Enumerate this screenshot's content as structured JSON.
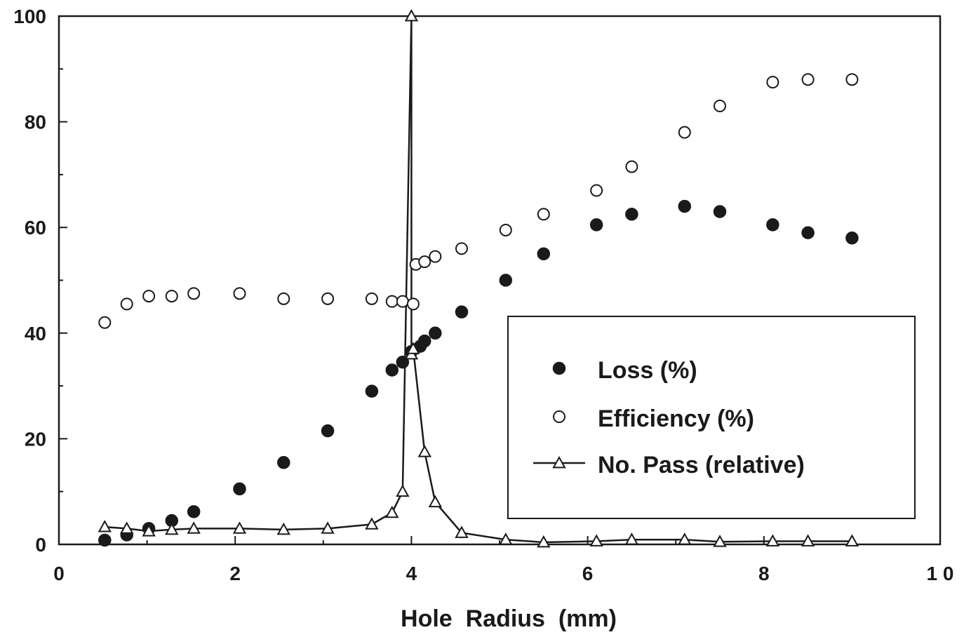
{
  "chart_data": {
    "type": "scatter",
    "xlabel": "Hole  Radius  (mm)",
    "ylabel": "",
    "xlim": [
      0,
      10
    ],
    "ylim": [
      0,
      100
    ],
    "x_ticks": [
      0,
      2,
      4,
      6,
      8,
      10
    ],
    "x_tick_labels": [
      "0",
      "2",
      "4",
      "6",
      "8",
      "1 0"
    ],
    "y_ticks": [
      0,
      20,
      40,
      60,
      80,
      100
    ],
    "y_tick_labels": [
      "0",
      "20",
      "40",
      "60",
      "80",
      "100"
    ],
    "grid": false,
    "legend_position": "lower-right",
    "series": [
      {
        "name": "Loss (%)",
        "marker": "filled-circle",
        "line": false,
        "x": [
          0.52,
          0.77,
          1.02,
          1.28,
          1.53,
          2.05,
          2.55,
          3.05,
          3.55,
          3.78,
          3.9,
          4.0,
          4.1,
          4.15,
          4.27,
          4.57,
          5.07,
          5.5,
          6.1,
          6.5,
          7.1,
          7.5,
          8.1,
          8.5,
          9.0
        ],
        "values": [
          0.8,
          1.8,
          3.0,
          4.5,
          6.2,
          10.5,
          15.5,
          21.5,
          29.0,
          33.0,
          34.5,
          36.5,
          37.5,
          38.5,
          40.0,
          44.0,
          50.0,
          55.0,
          60.5,
          62.5,
          64.0,
          63.0,
          60.5,
          59.0,
          58.0
        ]
      },
      {
        "name": "Efficiency (%)",
        "marker": "open-circle",
        "line": false,
        "x": [
          0.52,
          0.77,
          1.02,
          1.28,
          1.53,
          2.05,
          2.55,
          3.05,
          3.55,
          3.78,
          3.9,
          4.02,
          4.05,
          4.15,
          4.27,
          4.57,
          5.07,
          5.5,
          6.1,
          6.5,
          7.1,
          7.5,
          8.1,
          8.5,
          9.0
        ],
        "values": [
          42.0,
          45.5,
          47.0,
          47.0,
          47.5,
          47.5,
          46.5,
          46.5,
          46.5,
          46.0,
          46.0,
          45.5,
          53.0,
          53.5,
          54.5,
          56.0,
          59.5,
          62.5,
          67.0,
          71.5,
          78.0,
          83.0,
          87.5,
          88.0,
          88.0
        ]
      },
      {
        "name": "No. Pass (relative)",
        "marker": "open-triangle",
        "line": true,
        "x": [
          0.52,
          0.77,
          1.02,
          1.28,
          1.53,
          2.05,
          2.55,
          3.05,
          3.55,
          3.78,
          3.9,
          4.0,
          4.0,
          4.02,
          4.15,
          4.27,
          4.57,
          5.07,
          5.5,
          6.1,
          6.5,
          7.1,
          7.5,
          8.1,
          8.5,
          9.0
        ],
        "values": [
          3.3,
          3.0,
          2.5,
          2.8,
          3.0,
          3.0,
          2.8,
          3.0,
          3.8,
          6.0,
          10.0,
          100.0,
          36.0,
          37.0,
          17.5,
          8.0,
          2.2,
          0.9,
          0.4,
          0.6,
          0.9,
          0.9,
          0.5,
          0.6,
          0.6,
          0.6
        ]
      }
    ]
  }
}
